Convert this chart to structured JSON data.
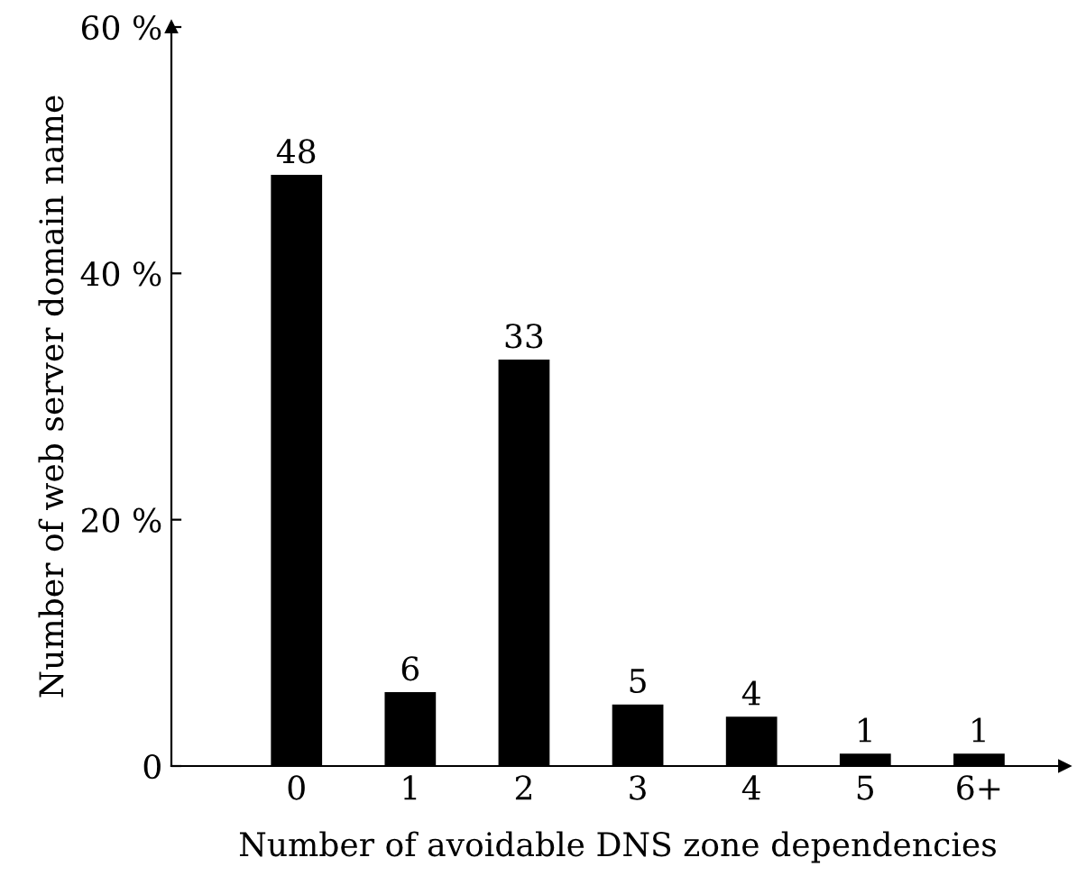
{
  "chart_data": {
    "type": "bar",
    "xlabel": "Number of avoidable DNS zone dependencies",
    "ylabel": "Number of web server domain name",
    "categories": [
      "0",
      "1",
      "2",
      "3",
      "4",
      "5",
      "6+"
    ],
    "values": [
      48,
      6,
      33,
      5,
      4,
      1,
      1
    ],
    "color": "#000000",
    "ylim": [
      0,
      60
    ],
    "yticks": [
      0,
      {
        "value": 20,
        "label": "20 %"
      },
      {
        "value": 40,
        "label": "40 %"
      },
      {
        "value": 60,
        "label": "60 %"
      }
    ],
    "data_labels": true,
    "grid": false,
    "legend": false
  }
}
